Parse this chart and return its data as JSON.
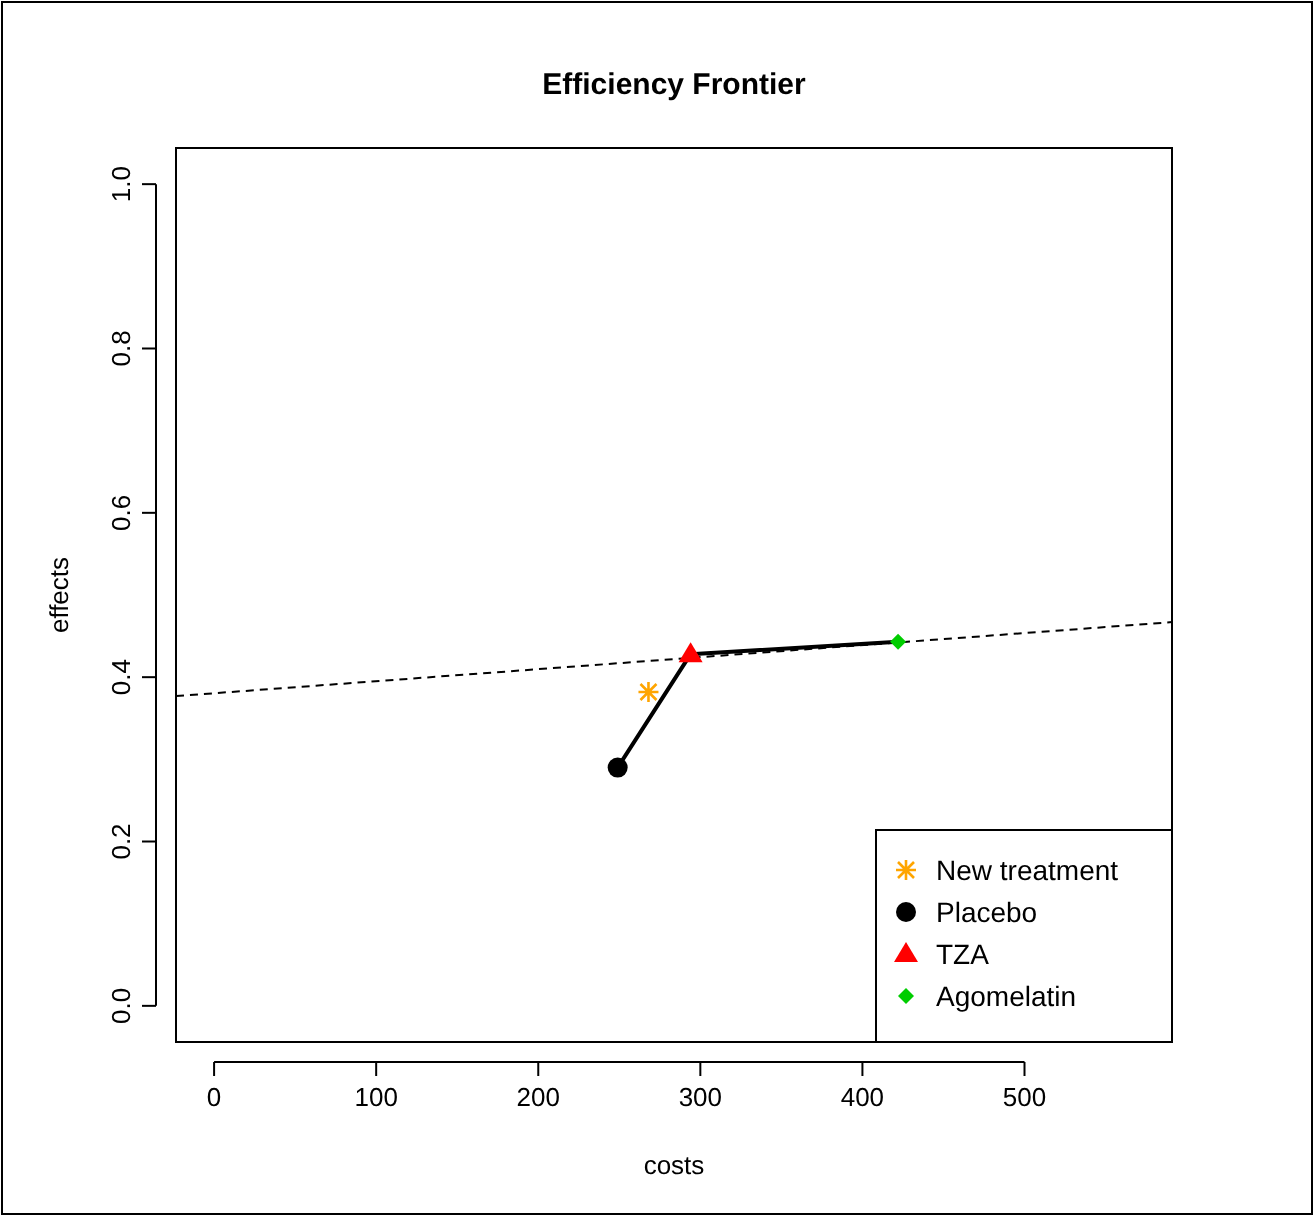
{
  "chart_data": {
    "type": "scatter",
    "title": "Efficiency Frontier",
    "xlabel": "costs",
    "ylabel": "effects",
    "xlim": [
      -23.5,
      591
    ],
    "ylim": [
      -0.044,
      1.044
    ],
    "xticks": [
      0,
      100,
      200,
      300,
      400,
      500
    ],
    "yticks": [
      {
        "value": 0,
        "label": "0.0"
      },
      0.2,
      0.4,
      0.6,
      0.8,
      {
        "value": 1,
        "label": "1.0"
      }
    ],
    "grid": false,
    "legend": "bottom right",
    "series": [
      {
        "type": "line",
        "color": "#000000",
        "x": [
          -23.5,
          591
        ],
        "values": [
          0.377,
          0.467
        ],
        "line_style": "dashed",
        "marker": "none"
      },
      {
        "type": "line",
        "color": "#000000",
        "x": [
          249,
          294,
          422
        ],
        "values": [
          0.29,
          0.428,
          0.443
        ],
        "line_style": "solid",
        "marker": "none"
      },
      {
        "name": "New treatment",
        "color": "#ffa500",
        "x": [
          268
        ],
        "values": [
          0.382
        ],
        "marker": "cross"
      },
      {
        "name": "Placebo",
        "color": "#000000",
        "x": [
          249
        ],
        "values": [
          0.29
        ],
        "marker": "circle"
      },
      {
        "name": "TZA",
        "color": "#ff0000",
        "x": [
          294
        ],
        "values": [
          0.428
        ],
        "marker": "triangle"
      },
      {
        "name": "Agomelatin",
        "color": "#00cd00",
        "x": [
          422
        ],
        "values": [
          0.443
        ],
        "marker": "diamond"
      }
    ]
  }
}
